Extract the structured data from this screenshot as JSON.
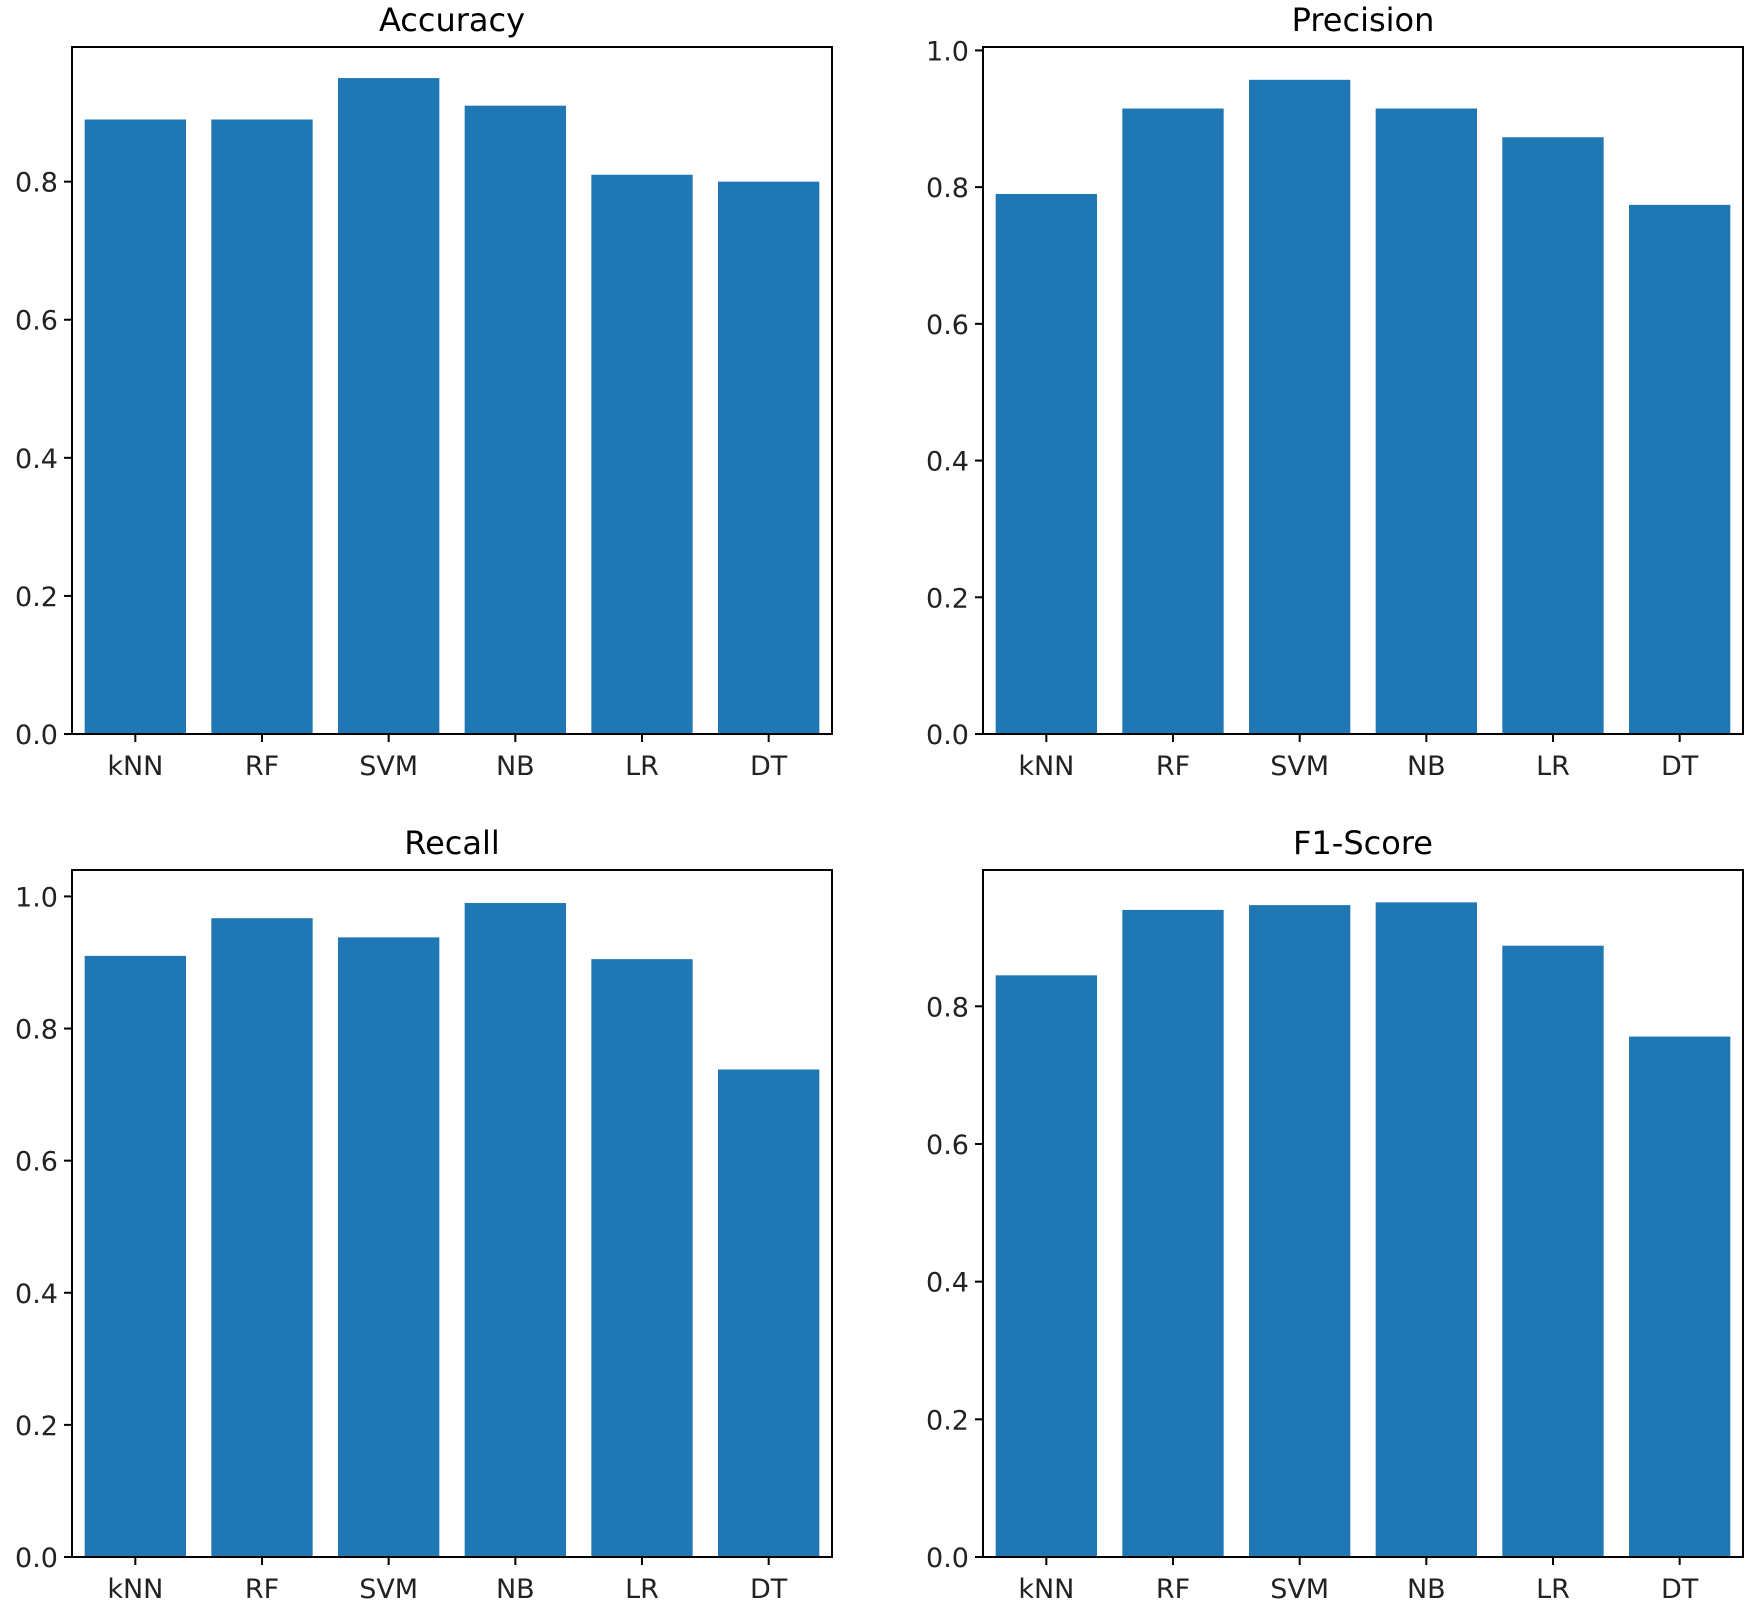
{
  "chart_data": [
    {
      "type": "bar",
      "title": "Accuracy",
      "categories": [
        "kNN",
        "RF",
        "SVM",
        "NB",
        "LR",
        "DT"
      ],
      "values": [
        0.89,
        0.89,
        0.95,
        0.91,
        0.81,
        0.8
      ],
      "ylim": [
        0,
        0.995
      ],
      "yticks": [
        0.0,
        0.2,
        0.4,
        0.6,
        0.8
      ],
      "ytick_labels": [
        "0.0",
        "0.2",
        "0.4",
        "0.6",
        "0.8"
      ],
      "xlabel": "",
      "ylabel": "",
      "grid": false,
      "bar_color": "#1f77b4"
    },
    {
      "type": "bar",
      "title": "Precision",
      "categories": [
        "kNN",
        "RF",
        "SVM",
        "NB",
        "LR",
        "DT"
      ],
      "values": [
        0.79,
        0.915,
        0.957,
        0.915,
        0.873,
        0.774
      ],
      "ylim": [
        0,
        1.005
      ],
      "yticks": [
        0.0,
        0.2,
        0.4,
        0.6,
        0.8,
        1.0
      ],
      "ytick_labels": [
        "0.0",
        "0.2",
        "0.4",
        "0.6",
        "0.8",
        "1.0"
      ],
      "xlabel": "",
      "ylabel": "",
      "grid": false,
      "bar_color": "#1f77b4"
    },
    {
      "type": "bar",
      "title": "Recall",
      "categories": [
        "kNN",
        "RF",
        "SVM",
        "NB",
        "LR",
        "DT"
      ],
      "values": [
        0.91,
        0.967,
        0.938,
        0.99,
        0.905,
        0.738
      ],
      "ylim": [
        0,
        1.04
      ],
      "yticks": [
        0.0,
        0.2,
        0.4,
        0.6,
        0.8,
        1.0
      ],
      "ytick_labels": [
        "0.0",
        "0.2",
        "0.4",
        "0.6",
        "0.8",
        "1.0"
      ],
      "xlabel": "",
      "ylabel": "",
      "grid": false,
      "bar_color": "#1f77b4"
    },
    {
      "type": "bar",
      "title": "F1-Score",
      "categories": [
        "kNN",
        "RF",
        "SVM",
        "NB",
        "LR",
        "DT"
      ],
      "values": [
        0.845,
        0.94,
        0.947,
        0.951,
        0.888,
        0.756
      ],
      "ylim": [
        0,
        0.998
      ],
      "yticks": [
        0.0,
        0.2,
        0.4,
        0.6,
        0.8
      ],
      "ytick_labels": [
        "0.0",
        "0.2",
        "0.4",
        "0.6",
        "0.8"
      ],
      "xlabel": "",
      "ylabel": "",
      "grid": false,
      "bar_color": "#1f77b4"
    }
  ]
}
